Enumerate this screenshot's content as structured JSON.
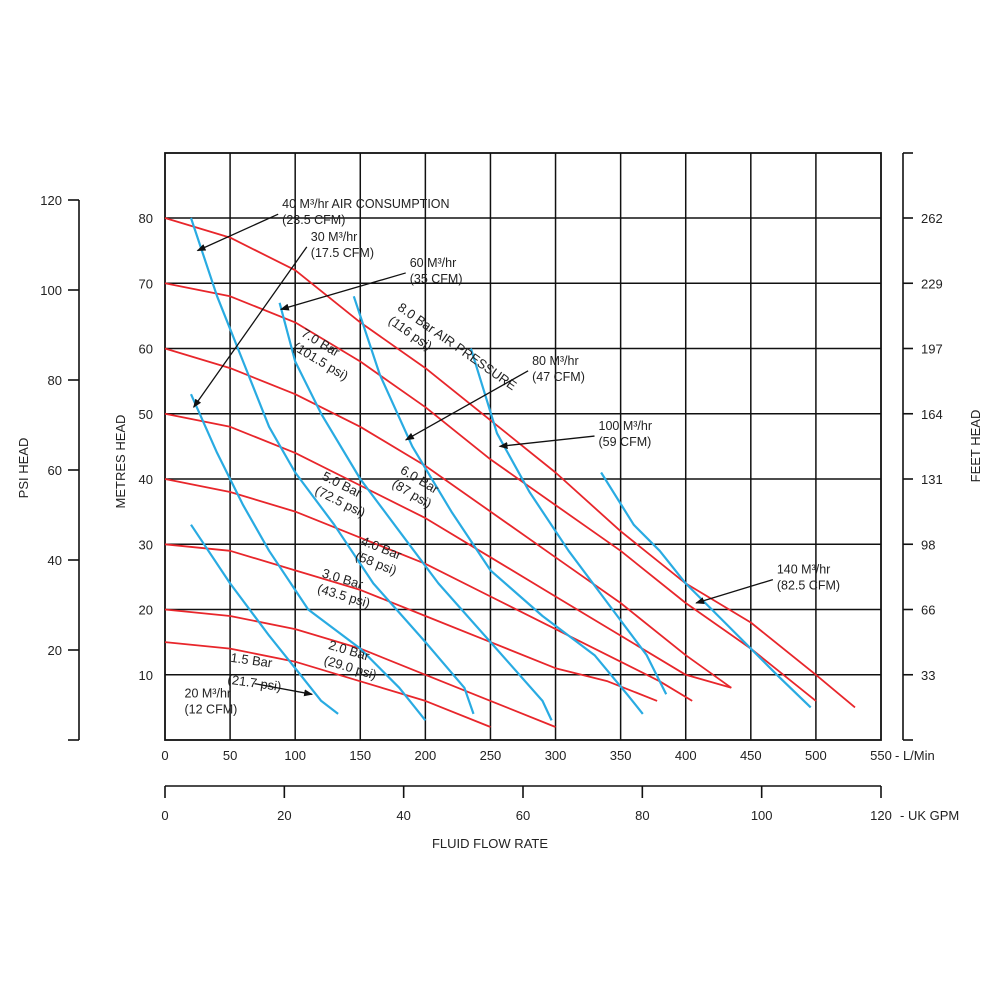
{
  "chart_data": {
    "type": "line",
    "title": "",
    "x_axis": {
      "label": "FLUID FLOW RATE",
      "unit_label": "- L/Min",
      "range": [
        0,
        550
      ],
      "ticks": [
        "0",
        "50",
        "100",
        "150",
        "200",
        "250",
        "300",
        "350",
        "400",
        "450",
        "500",
        "550"
      ],
      "grid": true
    },
    "x2_axis": {
      "unit_label": "- UK GPM",
      "range": [
        0,
        120
      ],
      "ticks": [
        "0",
        "20",
        "40",
        "60",
        "80",
        "100",
        "120"
      ]
    },
    "y_axis": {
      "label": "METRES HEAD",
      "range": [
        0,
        80
      ],
      "ticks": [
        "10",
        "20",
        "30",
        "40",
        "50",
        "60",
        "70",
        "80"
      ],
      "grid": true
    },
    "y_left_axis": {
      "label": "PSI HEAD",
      "range": [
        0,
        120
      ],
      "ticks": [
        "20",
        "40",
        "60",
        "80",
        "100",
        "120"
      ]
    },
    "y_right_axis": {
      "label": "FEET HEAD",
      "ticks": [
        "33",
        "66",
        "98",
        "131",
        "164",
        "197",
        "229",
        "262"
      ]
    },
    "pressure_series": [
      {
        "color": "#e8262b",
        "label": [
          "8.0 Bar AIR PRESSURE",
          "(116 psi)"
        ],
        "points": [
          [
            0,
            80
          ],
          [
            50,
            77
          ],
          [
            100,
            72
          ],
          [
            150,
            64
          ],
          [
            200,
            57
          ],
          [
            250,
            49
          ],
          [
            300,
            41
          ],
          [
            350,
            32
          ],
          [
            400,
            24
          ],
          [
            450,
            18
          ],
          [
            500,
            10
          ],
          [
            530,
            5
          ]
        ]
      },
      {
        "color": "#e8262b",
        "label": [
          "7.0 Bar",
          "(101.5 psi)"
        ],
        "points": [
          [
            0,
            70
          ],
          [
            50,
            68
          ],
          [
            100,
            64
          ],
          [
            150,
            58
          ],
          [
            200,
            51
          ],
          [
            250,
            43
          ],
          [
            300,
            36
          ],
          [
            350,
            29
          ],
          [
            400,
            21
          ],
          [
            450,
            14
          ],
          [
            500,
            6
          ]
        ]
      },
      {
        "color": "#e8262b",
        "label": [
          "6.0 Bar",
          "(87 psi)"
        ],
        "points": [
          [
            0,
            60
          ],
          [
            50,
            57
          ],
          [
            100,
            53
          ],
          [
            150,
            48
          ],
          [
            200,
            42
          ],
          [
            250,
            35
          ],
          [
            300,
            28
          ],
          [
            350,
            21
          ],
          [
            400,
            13
          ],
          [
            435,
            8
          ]
        ]
      },
      {
        "color": "#e8262b",
        "label": [
          "5.0 Bar",
          "(72.5 psi)"
        ],
        "points": [
          [
            0,
            50
          ],
          [
            50,
            48
          ],
          [
            100,
            44
          ],
          [
            150,
            39
          ],
          [
            200,
            34
          ],
          [
            250,
            28
          ],
          [
            300,
            22
          ],
          [
            350,
            16
          ],
          [
            400,
            10
          ],
          [
            435,
            8
          ]
        ]
      },
      {
        "color": "#e8262b",
        "label": [
          "4.0 Bar",
          "(58 psi)"
        ],
        "points": [
          [
            0,
            40
          ],
          [
            50,
            38
          ],
          [
            100,
            35
          ],
          [
            150,
            31
          ],
          [
            200,
            27
          ],
          [
            250,
            22
          ],
          [
            300,
            17
          ],
          [
            350,
            12
          ],
          [
            380,
            9
          ],
          [
            405,
            6
          ]
        ]
      },
      {
        "color": "#e8262b",
        "label": [
          "3.0 Bar",
          "(43.5 psi)"
        ],
        "points": [
          [
            0,
            30
          ],
          [
            50,
            29
          ],
          [
            100,
            26
          ],
          [
            150,
            23
          ],
          [
            200,
            19
          ],
          [
            250,
            15
          ],
          [
            300,
            11
          ],
          [
            340,
            9
          ],
          [
            378,
            6
          ]
        ]
      },
      {
        "color": "#e8262b",
        "label": [
          "2.0 Bar",
          "(29.0 psi)"
        ],
        "points": [
          [
            0,
            20
          ],
          [
            50,
            19
          ],
          [
            100,
            17
          ],
          [
            150,
            14
          ],
          [
            200,
            10
          ],
          [
            250,
            6
          ],
          [
            300,
            2
          ]
        ]
      },
      {
        "color": "#e8262b",
        "label": [
          "1.5 Bar",
          "(21.7 psi)"
        ],
        "points": [
          [
            0,
            15
          ],
          [
            50,
            14
          ],
          [
            100,
            12
          ],
          [
            150,
            9
          ],
          [
            200,
            6
          ],
          [
            250,
            2
          ]
        ]
      }
    ],
    "air_series": [
      {
        "color": "#29abe2",
        "label": [
          "20 M³/hr",
          "(12 CFM)"
        ],
        "points": [
          [
            20,
            33
          ],
          [
            50,
            24
          ],
          [
            80,
            16
          ],
          [
            100,
            11
          ],
          [
            120,
            6
          ],
          [
            133,
            4
          ]
        ]
      },
      {
        "color": "#29abe2",
        "label": [
          "30 M³/hr",
          "(17.5 CFM)"
        ],
        "points": [
          [
            20,
            53
          ],
          [
            40,
            44
          ],
          [
            60,
            36
          ],
          [
            80,
            29
          ],
          [
            110,
            20
          ],
          [
            150,
            14
          ],
          [
            180,
            8
          ],
          [
            200,
            3
          ]
        ]
      },
      {
        "color": "#29abe2",
        "label": [
          "40 M³/hr AIR CONSUMPTION",
          "(23.5 CFM)"
        ],
        "points": [
          [
            20,
            80
          ],
          [
            40,
            68
          ],
          [
            60,
            58
          ],
          [
            80,
            48
          ],
          [
            100,
            41
          ],
          [
            130,
            33
          ],
          [
            160,
            24
          ],
          [
            200,
            15
          ],
          [
            230,
            8
          ],
          [
            237,
            4
          ]
        ]
      },
      {
        "color": "#29abe2",
        "label": [
          "60 M³/hr",
          "(35 CFM)"
        ],
        "points": [
          [
            88,
            67
          ],
          [
            100,
            58
          ],
          [
            120,
            50
          ],
          [
            150,
            40
          ],
          [
            180,
            32
          ],
          [
            210,
            24
          ],
          [
            250,
            15
          ],
          [
            290,
            6
          ],
          [
            297,
            3
          ]
        ]
      },
      {
        "color": "#29abe2",
        "label": [
          "80 M³/hr",
          "(47 CFM)"
        ],
        "points": [
          [
            145,
            68
          ],
          [
            165,
            56
          ],
          [
            190,
            45
          ],
          [
            220,
            35
          ],
          [
            250,
            26
          ],
          [
            290,
            19
          ],
          [
            330,
            13
          ],
          [
            355,
            7
          ],
          [
            367,
            4
          ]
        ]
      },
      {
        "color": "#29abe2",
        "label": [
          "100 M³/hr",
          "(59 CFM)"
        ],
        "points": [
          [
            235,
            60
          ],
          [
            255,
            47
          ],
          [
            280,
            38
          ],
          [
            310,
            29
          ],
          [
            340,
            21
          ],
          [
            370,
            13
          ],
          [
            385,
            7
          ]
        ]
      },
      {
        "color": "#29abe2",
        "label": [
          "140 M³/hr",
          "(82.5 CFM)"
        ],
        "points": [
          [
            335,
            41
          ],
          [
            360,
            33
          ],
          [
            380,
            29
          ],
          [
            400,
            24
          ],
          [
            430,
            18
          ],
          [
            470,
            10
          ],
          [
            496,
            5
          ]
        ]
      }
    ],
    "air_annotations": [
      {
        "text": [
          "40 M³/hr AIR CONSUMPTION",
          "(23.5 CFM)"
        ],
        "anchor": [
          90,
          81.5
        ],
        "arrow_to": [
          25,
          75
        ]
      },
      {
        "text": [
          "30 M³/hr",
          "(17.5 CFM)"
        ],
        "anchor": [
          112,
          76.5
        ],
        "arrow_to": [
          22,
          51
        ]
      },
      {
        "text": [
          "60 M³/hr",
          "(35 CFM)"
        ],
        "anchor": [
          188,
          72.5
        ],
        "arrow_to": [
          89,
          66
        ]
      },
      {
        "text": [
          "80 M³/hr",
          "(47 CFM)"
        ],
        "anchor": [
          282,
          57.5
        ],
        "arrow_to": [
          185,
          46
        ]
      },
      {
        "text": [
          "100 M³/hr",
          "(59 CFM)"
        ],
        "anchor": [
          333,
          47.5
        ],
        "arrow_to": [
          257,
          45
        ]
      },
      {
        "text": [
          "140 M³/hr",
          "(82.5 CFM)"
        ],
        "anchor": [
          470,
          25.5
        ],
        "arrow_to": [
          408,
          21
        ]
      },
      {
        "text": [
          "20 M³/hr",
          "(12 CFM)"
        ],
        "anchor": [
          15,
          6.5
        ],
        "arrow_to": [
          113,
          7
        ]
      }
    ]
  }
}
